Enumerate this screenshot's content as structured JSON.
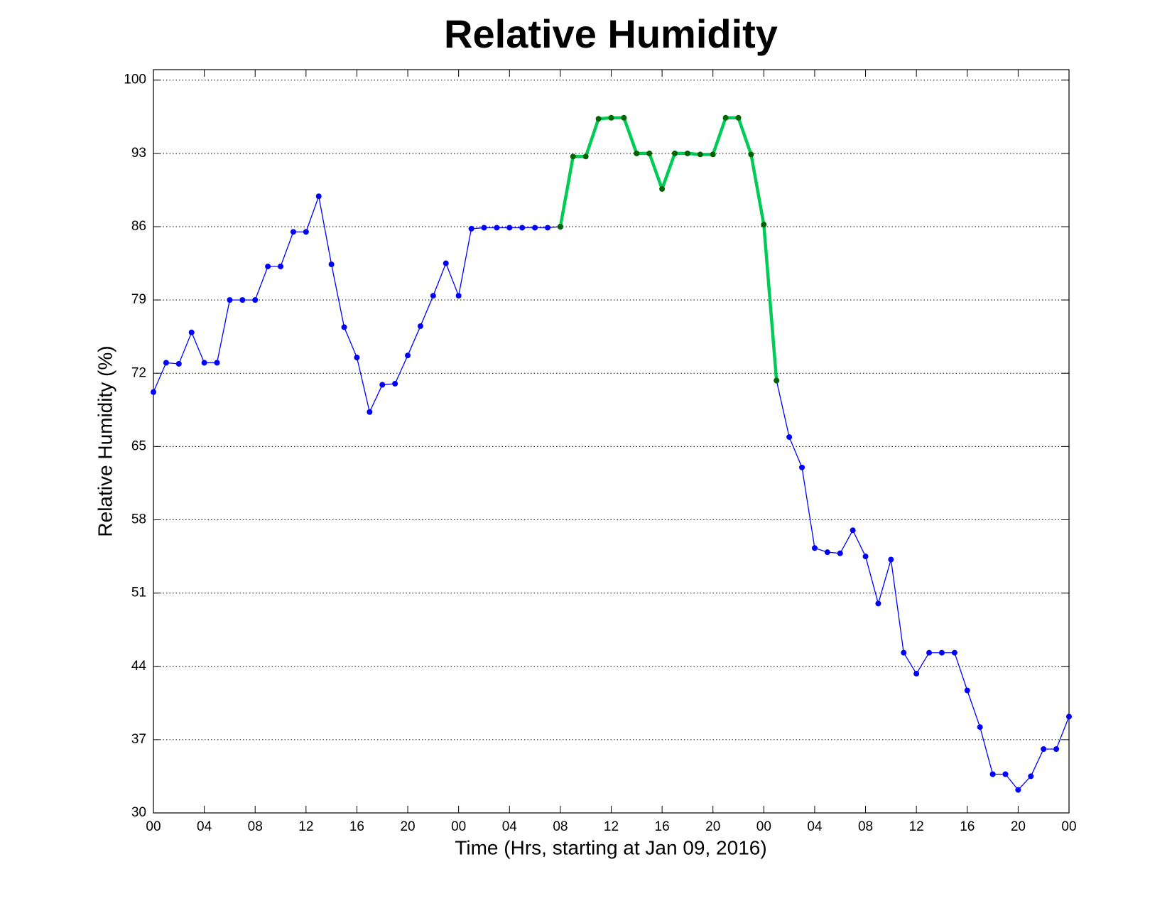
{
  "chart_data": {
    "type": "line",
    "title": "Relative Humidity",
    "x_label": "Time (Hrs, starting at Jan 09, 2016)",
    "y_label": "Relative Humidity (%)",
    "x": [
      0,
      1,
      2,
      3,
      4,
      5,
      6,
      7,
      8,
      9,
      10,
      11,
      12,
      13,
      14,
      15,
      16,
      17,
      18,
      19,
      20,
      21,
      22,
      23,
      24,
      25,
      26,
      27,
      28,
      29,
      30,
      31,
      32,
      33,
      34,
      35,
      36,
      37,
      38,
      39,
      40,
      41,
      42,
      43,
      44,
      45,
      46,
      47,
      48,
      49,
      50,
      51,
      52,
      53,
      54,
      55,
      56,
      57,
      58,
      59,
      60,
      61,
      62,
      63,
      64,
      65,
      66,
      67,
      68,
      69,
      70,
      71,
      72
    ],
    "series": [
      {
        "color": "#0000ff",
        "marker_color": "#0000ff",
        "line_width": 1.3,
        "values": [
          70.2,
          73.0,
          72.9,
          75.9,
          73.0,
          73.0,
          79.0,
          79.0,
          79.0,
          82.2,
          82.2,
          85.5,
          85.5,
          88.9,
          82.4,
          76.4,
          73.5,
          68.3,
          70.9,
          71.0,
          73.7,
          76.5,
          79.4,
          82.5,
          79.4,
          85.8,
          85.9,
          85.9,
          85.9,
          85.9,
          85.9,
          85.9,
          86.0,
          null,
          null,
          null,
          null,
          null,
          null,
          null,
          null,
          null,
          null,
          null,
          null,
          null,
          null,
          null,
          null,
          71.3,
          65.9,
          63.0,
          55.3,
          54.9,
          54.8,
          57.0,
          54.5,
          50.0,
          54.2,
          45.3,
          43.3,
          45.3,
          45.3,
          45.3,
          41.7,
          38.2,
          33.7,
          33.7,
          32.2,
          33.5,
          36.1,
          36.1,
          39.2
        ]
      },
      {
        "color": "#00cc55",
        "marker_color": "#006400",
        "line_width": 4.5,
        "values": [
          null,
          null,
          null,
          null,
          null,
          null,
          null,
          null,
          null,
          null,
          null,
          null,
          null,
          null,
          null,
          null,
          null,
          null,
          null,
          null,
          null,
          null,
          null,
          null,
          null,
          null,
          null,
          null,
          null,
          null,
          null,
          null,
          86.0,
          92.7,
          92.7,
          96.3,
          96.4,
          96.4,
          93.0,
          93.0,
          89.6,
          93.0,
          93.0,
          92.9,
          92.9,
          96.4,
          96.4,
          92.9,
          86.2,
          71.3,
          null,
          null,
          null,
          null,
          null,
          null,
          null,
          null,
          null,
          null,
          null,
          null,
          null,
          null,
          null,
          null,
          null,
          null,
          null,
          null,
          null,
          null,
          null
        ]
      }
    ],
    "xlim": [
      0,
      72
    ],
    "xticks": [
      {
        "value": 0,
        "label": "00"
      },
      {
        "value": 4,
        "label": "04"
      },
      {
        "value": 8,
        "label": "08"
      },
      {
        "value": 12,
        "label": "12"
      },
      {
        "value": 16,
        "label": "16"
      },
      {
        "value": 20,
        "label": "20"
      },
      {
        "value": 24,
        "label": "00"
      },
      {
        "value": 28,
        "label": "04"
      },
      {
        "value": 32,
        "label": "08"
      },
      {
        "value": 36,
        "label": "12"
      },
      {
        "value": 40,
        "label": "16"
      },
      {
        "value": 44,
        "label": "20"
      },
      {
        "value": 48,
        "label": "00"
      },
      {
        "value": 52,
        "label": "04"
      },
      {
        "value": 56,
        "label": "08"
      },
      {
        "value": 60,
        "label": "12"
      },
      {
        "value": 64,
        "label": "16"
      },
      {
        "value": 68,
        "label": "20"
      },
      {
        "value": 72,
        "label": "00"
      }
    ],
    "ylim": [
      30,
      101
    ],
    "yticks": [
      30,
      37,
      44,
      51,
      58,
      65,
      72,
      79,
      86,
      93,
      100
    ],
    "grid": true
  }
}
